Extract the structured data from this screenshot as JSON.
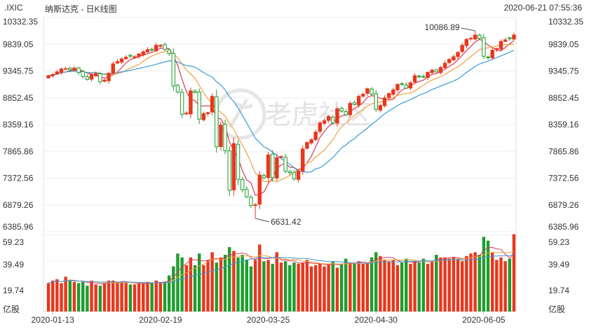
{
  "header": {
    "symbol": ".IXIC",
    "name": "纳斯达克 - 日K线图",
    "timestamp": "2020-06-21 07:55:36"
  },
  "watermark": {
    "text": "老虎社区"
  },
  "colors": {
    "up": "#e8371d",
    "down": "#1e9c2e",
    "ma5": "#d93a5a",
    "ma10": "#f0a040",
    "ma20": "#3a9ad9"
  },
  "chart_data": [
    {
      "type": "candlestick",
      "title": ".IXIC 纳斯达克 - 日K线图",
      "y_ticks": [
        "10332.35",
        "9839.05",
        "9345.75",
        "8852.45",
        "8359.16",
        "7865.86",
        "7372.56",
        "6879.26",
        "6385.96"
      ],
      "ylim": [
        6385.96,
        10332.35
      ],
      "x_labels": [
        "2020-01-13",
        "2020-02-19",
        "2020-03-25",
        "2020-04-30",
        "2020-06-05"
      ],
      "annotations": [
        {
          "label": "10086.89",
          "kind": "high"
        },
        {
          "label": "6631.42",
          "kind": "low"
        }
      ],
      "series_note": "Daily OHLC candles with 5/10/20-day moving averages",
      "close": [
        9260,
        9283,
        9330,
        9384,
        9390,
        9370,
        9400,
        9321,
        9245,
        9190,
        9275,
        9298,
        9150,
        9180,
        9305,
        9480,
        9520,
        9570,
        9600,
        9620,
        9610,
        9660,
        9700,
        9740,
        9730,
        9820,
        9820,
        9745,
        9670,
        9070,
        8960,
        8550,
        8570,
        8980,
        8950,
        8460,
        8560,
        8580,
        8880,
        7950,
        8350,
        7880,
        7150,
        8010,
        7350,
        7160,
        7030,
        6870,
        6880,
        7430,
        7380,
        7800,
        7380,
        7750,
        7770,
        7500,
        7470,
        7360,
        7500,
        7910,
        8030,
        8080,
        8220,
        8390,
        8430,
        8510,
        8390,
        8650,
        8610,
        8540,
        8750,
        8730,
        8880,
        8920,
        9020,
        8920,
        8640,
        8710,
        8850,
        8930,
        9000,
        9100,
        9100,
        9030,
        9130,
        9260,
        9240,
        9240,
        9320,
        9360,
        9330,
        9410,
        9490,
        9560,
        9610,
        9690,
        9820,
        9930,
        9950,
        10010,
        9950,
        9620,
        9590,
        9730,
        9760,
        9890,
        9920,
        9940,
        10010
      ],
      "volume": [
        22,
        24,
        25,
        22,
        27,
        24,
        23,
        22,
        23,
        20,
        24,
        21,
        20,
        22,
        24,
        24,
        23,
        23,
        22,
        21,
        21,
        22,
        22,
        23,
        22,
        24,
        22,
        23,
        28,
        35,
        45,
        42,
        36,
        42,
        36,
        45,
        36,
        40,
        46,
        38,
        42,
        44,
        50,
        47,
        42,
        44,
        40,
        35,
        40,
        52,
        39,
        40,
        37,
        46,
        38,
        39,
        36,
        38,
        37,
        38,
        40,
        35,
        36,
        37,
        35,
        37,
        39,
        34,
        37,
        41,
        38,
        37,
        39,
        37,
        38,
        42,
        46,
        43,
        40,
        39,
        40,
        36,
        38,
        41,
        37,
        39,
        38,
        41,
        37,
        39,
        44,
        42,
        42,
        41,
        42,
        41,
        39,
        43,
        45,
        46,
        44,
        58,
        55,
        46,
        40,
        42,
        39,
        41,
        60
      ],
      "volume_axis": {
        "label": "亿股",
        "ticks": [
          "59.23",
          "39.49",
          "19.74"
        ],
        "ylim": [
          0,
          59.23
        ]
      }
    }
  ]
}
